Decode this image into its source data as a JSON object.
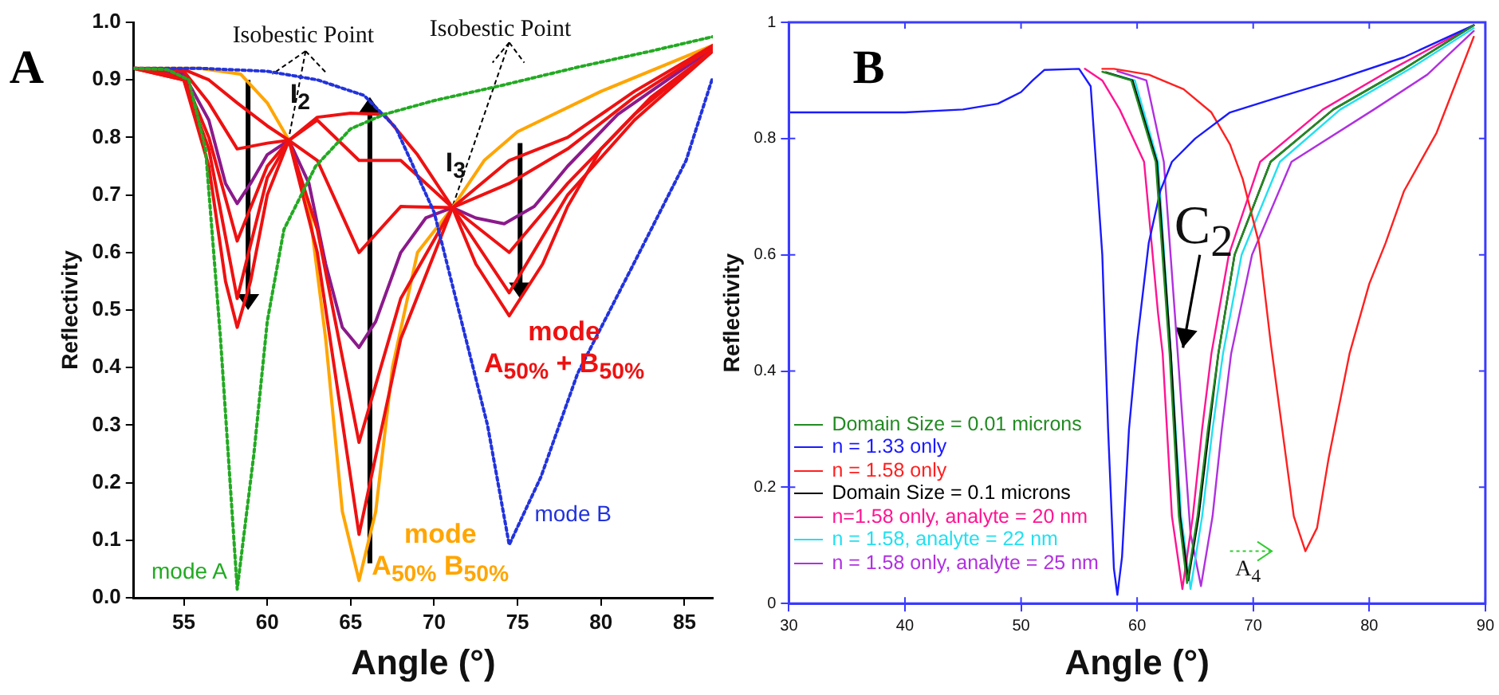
{
  "chart_data": [
    {
      "type": "line",
      "title": "A",
      "xlabel": "Angle (°)",
      "ylabel": "Reflectivity",
      "xlim": [
        52,
        86.7
      ],
      "ylim": [
        0,
        1
      ],
      "xticks": [
        55,
        60,
        65,
        70,
        75,
        80,
        85
      ],
      "yticks": [
        {
          "value": 0,
          "label": "0.0"
        },
        0.1,
        0.2,
        0.3,
        0.4,
        0.5,
        0.6,
        0.7,
        0.8,
        0.9,
        {
          "value": 1,
          "label": "1.0"
        }
      ],
      "grid": false,
      "legend": false,
      "marker": "none",
      "series": [
        {
          "name": "mode A",
          "color": "#22aa22",
          "line_style": "dotted",
          "x": [
            52,
            54,
            55.3,
            56.3,
            57.2,
            58.2,
            59.2,
            60,
            61,
            62.9,
            65,
            67,
            70,
            74,
            78.6,
            83,
            86.7
          ],
          "values": [
            0.92,
            0.918,
            0.9,
            0.78,
            0.45,
            0.015,
            0.25,
            0.48,
            0.64,
            0.75,
            0.815,
            0.84,
            0.864,
            0.89,
            0.922,
            0.95,
            0.975
          ]
        },
        {
          "name": "mode B",
          "color": "#2233dd",
          "line_style": "dotted",
          "x": [
            52,
            56,
            60,
            63,
            65.8,
            67.7,
            70,
            71.6,
            73.2,
            74.5,
            76.4,
            78.6,
            81.9,
            85.1,
            86.7
          ],
          "values": [
            0.92,
            0.92,
            0.915,
            0.9,
            0.873,
            0.817,
            0.67,
            0.485,
            0.3,
            0.092,
            0.21,
            0.39,
            0.577,
            0.76,
            0.905
          ]
        },
        {
          "color": "#ee1111",
          "x": [
            52,
            55,
            56.5,
            58.2,
            60,
            61.3,
            63,
            65.5,
            68,
            71.1,
            74.5,
            78,
            82,
            86.7
          ],
          "values": [
            0.92,
            0.9,
            0.78,
            0.52,
            0.73,
            0.795,
            0.83,
            0.76,
            0.76,
            0.678,
            0.53,
            0.7,
            0.83,
            0.95
          ]
        },
        {
          "color": "#ee1111",
          "x": [
            52,
            55,
            56.5,
            58.2,
            60,
            61.3,
            63,
            65.5,
            68,
            71.1,
            74.5,
            78,
            82,
            86.7
          ],
          "values": [
            0.92,
            0.905,
            0.8,
            0.62,
            0.75,
            0.795,
            0.76,
            0.6,
            0.68,
            0.678,
            0.6,
            0.72,
            0.84,
            0.952
          ]
        },
        {
          "color": "#ee1111",
          "x": [
            52,
            55,
            56.5,
            58.2,
            60,
            61.3,
            63,
            65.5,
            68,
            71.1,
            74.5,
            78,
            82,
            86.7
          ],
          "values": [
            0.92,
            0.915,
            0.86,
            0.78,
            0.79,
            0.795,
            0.64,
            0.27,
            0.52,
            0.678,
            0.72,
            0.78,
            0.87,
            0.957
          ]
        },
        {
          "color": "#ee1111",
          "x": [
            52,
            55,
            56.5,
            58.2,
            60,
            61.3,
            63,
            65.5,
            68,
            71.1,
            74.5,
            78,
            82,
            86.7
          ],
          "values": [
            0.92,
            0.918,
            0.9,
            0.86,
            0.82,
            0.795,
            0.6,
            0.11,
            0.45,
            0.678,
            0.76,
            0.8,
            0.88,
            0.96
          ]
        },
        {
          "color": "#8b1a8b",
          "x": [
            52,
            55,
            56.5,
            57.5,
            58.2,
            59,
            60,
            61.3,
            62.5,
            63.5,
            64.5,
            65.5,
            66.5,
            68,
            69.5,
            71.1,
            72.5,
            74.2,
            76,
            78,
            81,
            86.7
          ],
          "values": [
            0.92,
            0.91,
            0.83,
            0.72,
            0.685,
            0.72,
            0.77,
            0.795,
            0.72,
            0.58,
            0.47,
            0.435,
            0.48,
            0.6,
            0.66,
            0.678,
            0.66,
            0.65,
            0.68,
            0.75,
            0.84,
            0.955
          ]
        },
        {
          "name": "mode\nA$_{50%}$ B$_{50%}$",
          "color": "#ffa500",
          "x": [
            52,
            56,
            58.4,
            60,
            61.3,
            62.5,
            63.5,
            64.5,
            65.5,
            66.5,
            67.5,
            69,
            71.1,
            73,
            75,
            80,
            86.7
          ],
          "values": [
            0.92,
            0.92,
            0.91,
            0.86,
            0.795,
            0.68,
            0.45,
            0.15,
            0.03,
            0.15,
            0.4,
            0.6,
            0.678,
            0.76,
            0.81,
            0.88,
            0.96
          ]
        },
        {
          "name": "mode\nA$_{50%}$ + B$_{50%}$",
          "color": "#ee1111",
          "x": [
            52,
            55,
            56.5,
            57.5,
            58.2,
            59,
            60,
            61.3,
            63,
            65,
            67,
            69,
            71.1,
            72.5,
            74.5,
            76.5,
            78,
            80,
            83,
            86.7
          ],
          "values": [
            0.92,
            0.9,
            0.75,
            0.55,
            0.47,
            0.55,
            0.7,
            0.795,
            0.835,
            0.842,
            0.84,
            0.77,
            0.678,
            0.58,
            0.49,
            0.58,
            0.68,
            0.78,
            0.87,
            0.95
          ]
        }
      ],
      "annotations": [
        {
          "text": "Isobestic Point",
          "x": 61.3,
          "y": 0.795
        },
        {
          "text": "Isobestic Point",
          "x": 71.1,
          "y": 0.678
        },
        {
          "text": "I$_{2}$",
          "x": 61.3,
          "y": 0.795
        },
        {
          "text": "I$_{3}$",
          "x": 71.1,
          "y": 0.678
        }
      ]
    },
    {
      "type": "line",
      "title": "B",
      "xlabel": "Angle (°)",
      "ylabel": "Reflectivity",
      "xlim": [
        30,
        90
      ],
      "ylim": [
        0,
        1
      ],
      "xticks": [
        30,
        40,
        50,
        60,
        70,
        80,
        90
      ],
      "yticks": [
        0,
        0.2,
        0.4,
        0.6,
        0.8,
        1
      ],
      "grid": false,
      "legend": "bottom left",
      "marker": "none",
      "series": [
        {
          "name": "Domain Size = 0.01 microns",
          "color": "#228b22",
          "x": [
            57,
            59.5,
            61.6,
            62.8,
            63.6,
            64.3,
            65.2,
            66.1,
            67,
            68.4,
            71.5,
            76.9,
            83,
            89
          ],
          "values": [
            0.915,
            0.9,
            0.76,
            0.43,
            0.15,
            0.035,
            0.15,
            0.3,
            0.43,
            0.6,
            0.76,
            0.85,
            0.92,
            0.995
          ]
        },
        {
          "name": "n = 1.33 only",
          "color": "#1a1aff",
          "x": [
            30,
            40,
            45,
            48,
            50,
            51,
            52,
            55,
            56,
            57,
            57.5,
            58,
            58.3,
            58.7,
            59.3,
            60,
            61,
            62,
            63,
            65,
            68,
            72,
            77,
            83,
            89
          ],
          "values": [
            0.845,
            0.845,
            0.85,
            0.86,
            0.88,
            0.9,
            0.918,
            0.92,
            0.89,
            0.6,
            0.3,
            0.06,
            0.015,
            0.08,
            0.3,
            0.45,
            0.62,
            0.71,
            0.76,
            0.8,
            0.845,
            0.87,
            0.9,
            0.94,
            0.995
          ]
        },
        {
          "name": "n = 1.58 only",
          "color": "#ff2020",
          "x": [
            57,
            58,
            61,
            64,
            66.4,
            68,
            69.1,
            70.5,
            71.5,
            72.5,
            73.5,
            74.5,
            75.5,
            76.5,
            78.3,
            80,
            81.4,
            83,
            85.8,
            89
          ],
          "values": [
            0.92,
            0.92,
            0.91,
            0.885,
            0.845,
            0.79,
            0.73,
            0.62,
            0.45,
            0.3,
            0.15,
            0.09,
            0.13,
            0.25,
            0.43,
            0.55,
            0.62,
            0.71,
            0.81,
            0.975
          ]
        },
        {
          "name": "Domain Size = 0.1 microns",
          "color": "#000000",
          "x": [
            57.3,
            59.6,
            61.7,
            62.9,
            63.7,
            64.4,
            65.3,
            66.2,
            67,
            68.4,
            71.5,
            76.9,
            83,
            89
          ],
          "values": [
            0.914,
            0.9,
            0.76,
            0.43,
            0.15,
            0.04,
            0.15,
            0.3,
            0.43,
            0.6,
            0.76,
            0.85,
            0.92,
            0.995
          ]
        },
        {
          "name": "n=1.58 only, analyte = 20 nm",
          "color": "#ff1493",
          "x": [
            55.5,
            57,
            58.5,
            60.6,
            61.8,
            62.2,
            63,
            63.9,
            64.8,
            65.6,
            66.4,
            67.9,
            70.6,
            76,
            82,
            89
          ],
          "values": [
            0.92,
            0.9,
            0.85,
            0.76,
            0.5,
            0.43,
            0.15,
            0.025,
            0.15,
            0.3,
            0.43,
            0.6,
            0.76,
            0.85,
            0.92,
            0.995
          ]
        },
        {
          "name": "n = 1.58, analyte = 22 nm",
          "color": "#22e0f0",
          "x": [
            57.6,
            59.8,
            61.8,
            62.9,
            63.8,
            64.6,
            65.6,
            66.5,
            67.4,
            69,
            72.3,
            77.5,
            83.5,
            89
          ],
          "values": [
            0.912,
            0.9,
            0.76,
            0.43,
            0.15,
            0.025,
            0.15,
            0.3,
            0.43,
            0.6,
            0.76,
            0.85,
            0.92,
            0.99
          ]
        },
        {
          "name": "n = 1.58 only, analyte = 25 nm",
          "color": "#b030e0",
          "x": [
            58.3,
            60.8,
            62.3,
            63.5,
            64.6,
            65.5,
            66.5,
            67.3,
            68.1,
            69.9,
            73.3,
            80.4,
            85,
            89
          ],
          "values": [
            0.916,
            0.9,
            0.76,
            0.43,
            0.12,
            0.03,
            0.15,
            0.3,
            0.43,
            0.6,
            0.76,
            0.85,
            0.91,
            0.985
          ]
        }
      ],
      "annotations": [
        {
          "text": "C$_{2}$",
          "x": 63.95,
          "y": 0.44
        },
        {
          "text": "A$_{4}$",
          "x": 74.5,
          "y": 0.09
        }
      ]
    }
  ]
}
